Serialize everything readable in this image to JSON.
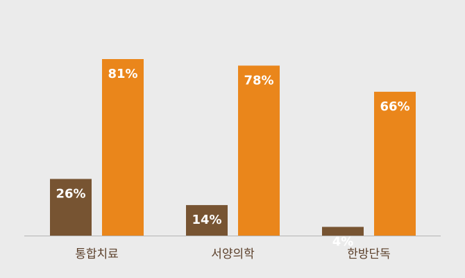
{
  "chart_data": {
    "type": "bar",
    "categories": [
      "통합치료",
      "서양의학",
      "한방단독"
    ],
    "series": [
      {
        "color": "#775432",
        "values": [
          26,
          14,
          4
        ],
        "value_labels": [
          "26%",
          "14%",
          "4%"
        ]
      },
      {
        "color": "#ea861b",
        "values": [
          81,
          78,
          66
        ],
        "value_labels": [
          "81%",
          "78%",
          "66%"
        ]
      }
    ]
  }
}
